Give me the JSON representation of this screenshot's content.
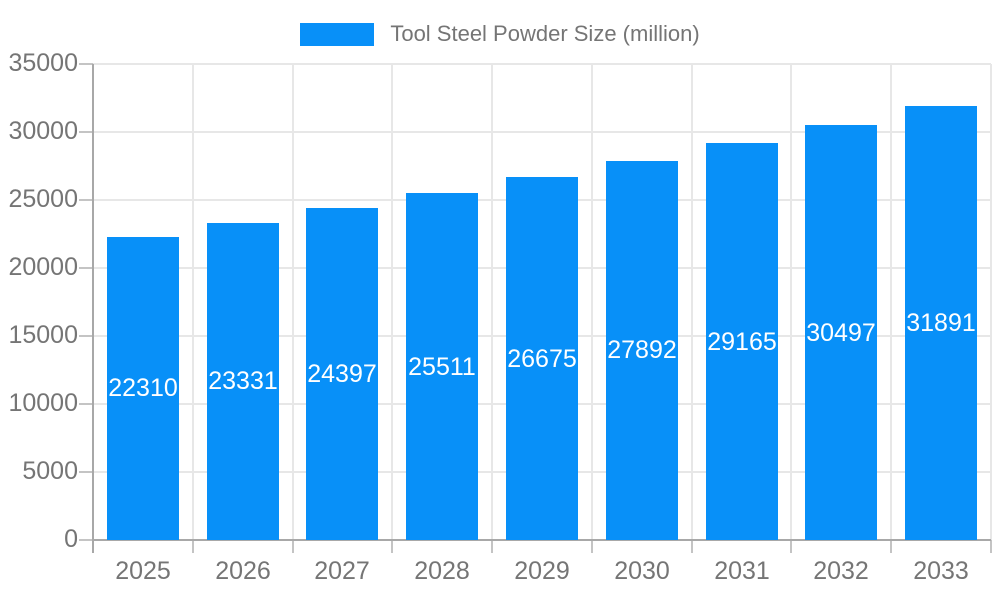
{
  "chart_data": {
    "type": "bar",
    "title": "Tool Steel Powder Size (million)",
    "categories": [
      "2025",
      "2026",
      "2027",
      "2028",
      "2029",
      "2030",
      "2031",
      "2032",
      "2033"
    ],
    "values": [
      22310,
      23331,
      24397,
      25511,
      26675,
      27892,
      29165,
      30497,
      31891
    ],
    "series": [
      {
        "name": "Tool Steel Powder Size (million)",
        "values": [
          22310,
          23331,
          24397,
          25511,
          26675,
          27892,
          29165,
          30497,
          31891
        ]
      }
    ],
    "xlabel": "",
    "ylabel": "",
    "ylim": [
      0,
      35000
    ],
    "ytick_step": 5000,
    "ytick_labels": [
      "0",
      "5000",
      "10000",
      "15000",
      "20000",
      "25000",
      "30000",
      "35000"
    ],
    "grid": true,
    "legend_position": "top",
    "bar_labels_shown": true,
    "colors": {
      "bar": "#0890F8",
      "bar_value_text": "#ffffff",
      "axis_text": "#757575",
      "legend_text": "#757575",
      "gridline": "#e7e7e7",
      "tick_mark": "#c4c4c4",
      "axis_line": "#a8a8a8",
      "background": "#ffffff"
    }
  }
}
